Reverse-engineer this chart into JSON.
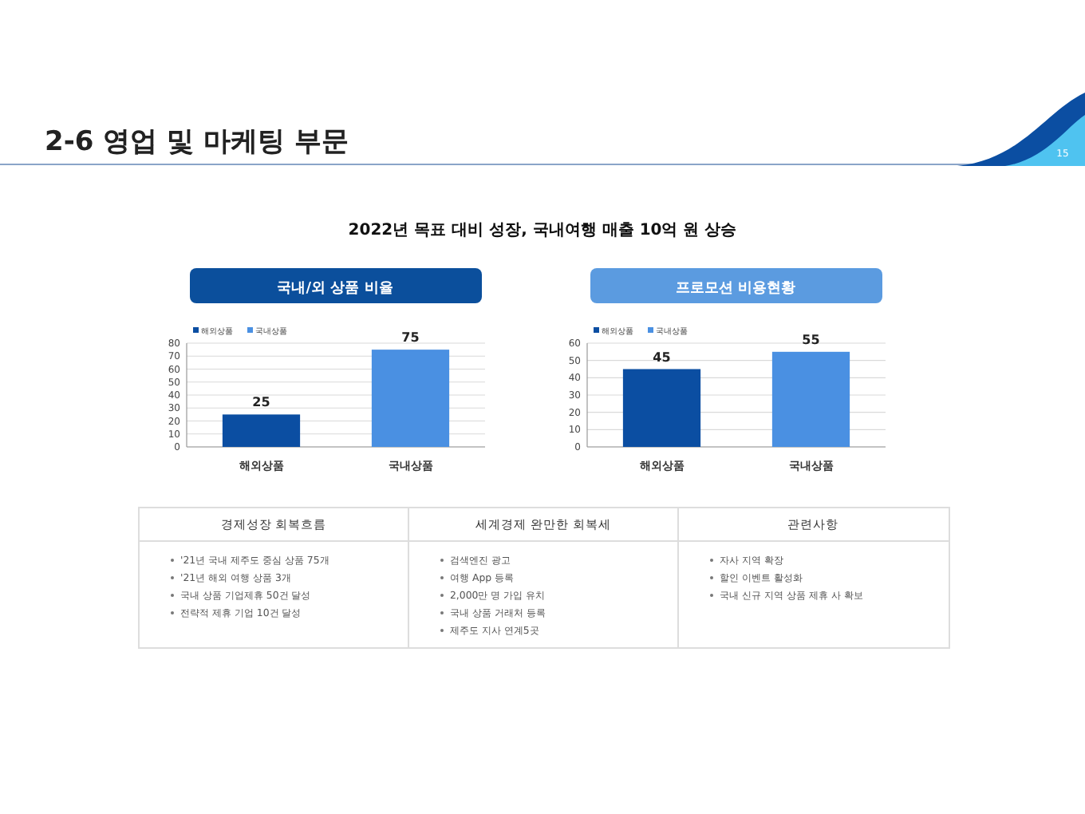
{
  "chart_data": [
    {
      "type": "other",
      "title": "2-6 영업 및 마케팅 부문",
      "subtitle": "2022년 목표 대비 성장, 국내여행 매출 10억 원 상승",
      "annotations": [
        "15"
      ]
    },
    {
      "type": "bar",
      "title": "국내/외 상품 비율",
      "categories": [
        "해외상품",
        "국내상품"
      ],
      "series": [
        {
          "name": "해외상품",
          "color": "#0b4ea2",
          "values": [
            25,
            null
          ]
        },
        {
          "name": "국내상품",
          "color": "#4a90e2",
          "values": [
            null,
            75
          ]
        }
      ],
      "ylim": [
        0,
        80
      ],
      "yticks": [
        0,
        10,
        20,
        30,
        40,
        50,
        60,
        70,
        80
      ],
      "grid": "y",
      "legend": "top left",
      "data_labels": true
    },
    {
      "type": "bar",
      "title": "프로모션 비용현황",
      "categories": [
        "해외상품",
        "국내상품"
      ],
      "series": [
        {
          "name": "해외상품",
          "color": "#0b4ea2",
          "values": [
            45,
            null
          ]
        },
        {
          "name": "국내상품",
          "color": "#4a90e2",
          "values": [
            null,
            55
          ]
        }
      ],
      "ylim": [
        0,
        60
      ],
      "yticks": [
        0,
        10,
        20,
        30,
        40,
        50,
        60
      ],
      "grid": "y",
      "legend": "top left",
      "data_labels": true
    },
    {
      "type": "other",
      "title": "경제성장 회복흐름",
      "annotations": [
        "'21년 국내 제주도 중심 상품 75개",
        "'21년 해외 여행 상품 3개",
        "국내 상품 기업제휴 50건 달성",
        "전략적 제휴 기업 10건 달성"
      ]
    },
    {
      "type": "other",
      "title": "세계경제 완만한 회복세",
      "annotations": [
        "검색엔진 광고",
        "여행 App 등록",
        "2,000만 명 가입 유치",
        "국내 상품 거래처 등록",
        "제주도 지사 연계5곳"
      ]
    },
    {
      "type": "other",
      "title": "관련사항",
      "annotations": [
        "자사 지역 확장",
        "할인 이벤트 활성화",
        "국내 신규 지역 상품 제휴 사 확보"
      ]
    }
  ]
}
